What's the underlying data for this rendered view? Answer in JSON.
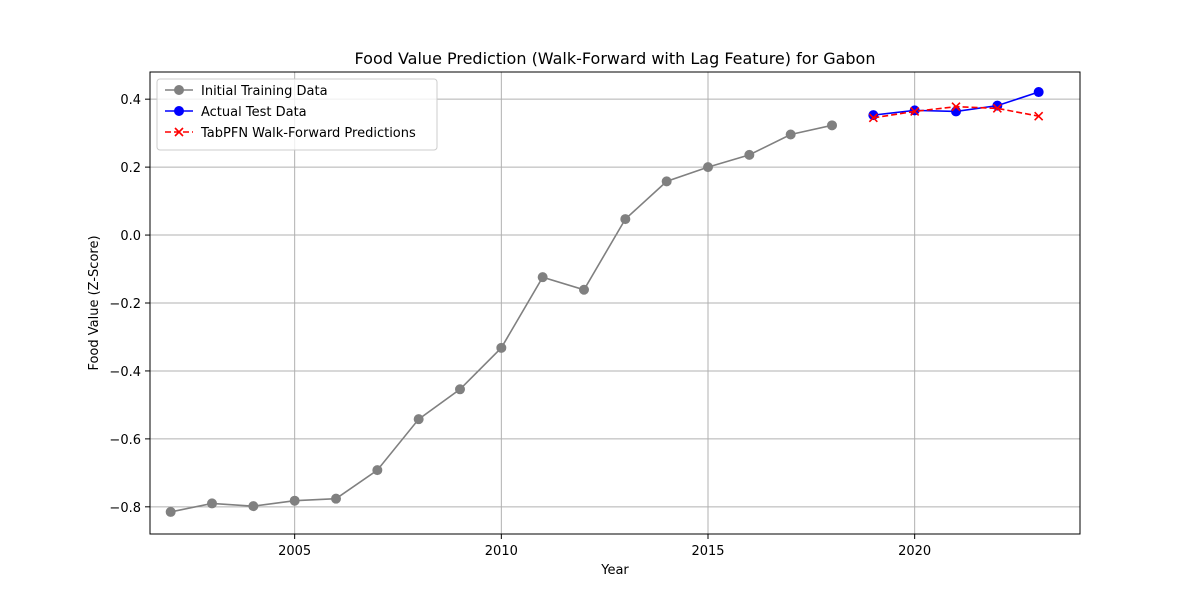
{
  "chart_data": {
    "type": "line",
    "title": "Food Value Prediction (Walk-Forward with Lag Feature) for Gabon",
    "xlabel": "Year",
    "ylabel": "Food Value (Z-Score)",
    "xlim": [
      2001.5,
      2024.0
    ],
    "ylim": [
      -0.88,
      0.48
    ],
    "xticks": [
      2005,
      2010,
      2015,
      2020
    ],
    "yticks": [
      -0.8,
      -0.6,
      -0.4,
      -0.2,
      0.0,
      0.2,
      0.4
    ],
    "ytick_labels": [
      "−0.8",
      "−0.6",
      "−0.4",
      "−0.2",
      "0.0",
      "0.2",
      "0.4"
    ],
    "grid": true,
    "legend_position": "top-left",
    "series": [
      {
        "name": "Initial Training Data",
        "color": "#808080",
        "marker": "circle",
        "linestyle": "solid",
        "x": [
          2002,
          2003,
          2004,
          2005,
          2006,
          2007,
          2008,
          2009,
          2010,
          2011,
          2012,
          2013,
          2014,
          2015,
          2016,
          2017,
          2018
        ],
        "y": [
          -0.815,
          -0.79,
          -0.798,
          -0.782,
          -0.776,
          -0.692,
          -0.542,
          -0.454,
          -0.332,
          -0.124,
          -0.161,
          0.047,
          0.158,
          0.2,
          0.236,
          0.296,
          0.323
        ]
      },
      {
        "name": "Actual Test Data",
        "color": "#0000ff",
        "marker": "circle",
        "linestyle": "solid",
        "x": [
          2019,
          2020,
          2021,
          2022,
          2023
        ],
        "y": [
          0.353,
          0.367,
          0.364,
          0.381,
          0.421
        ]
      },
      {
        "name": "TabPFN Walk-Forward Predictions",
        "color": "#ff0000",
        "marker": "x",
        "linestyle": "dashed",
        "x": [
          2019,
          2020,
          2021,
          2022,
          2023
        ],
        "y": [
          0.345,
          0.364,
          0.378,
          0.373,
          0.35
        ]
      }
    ]
  }
}
